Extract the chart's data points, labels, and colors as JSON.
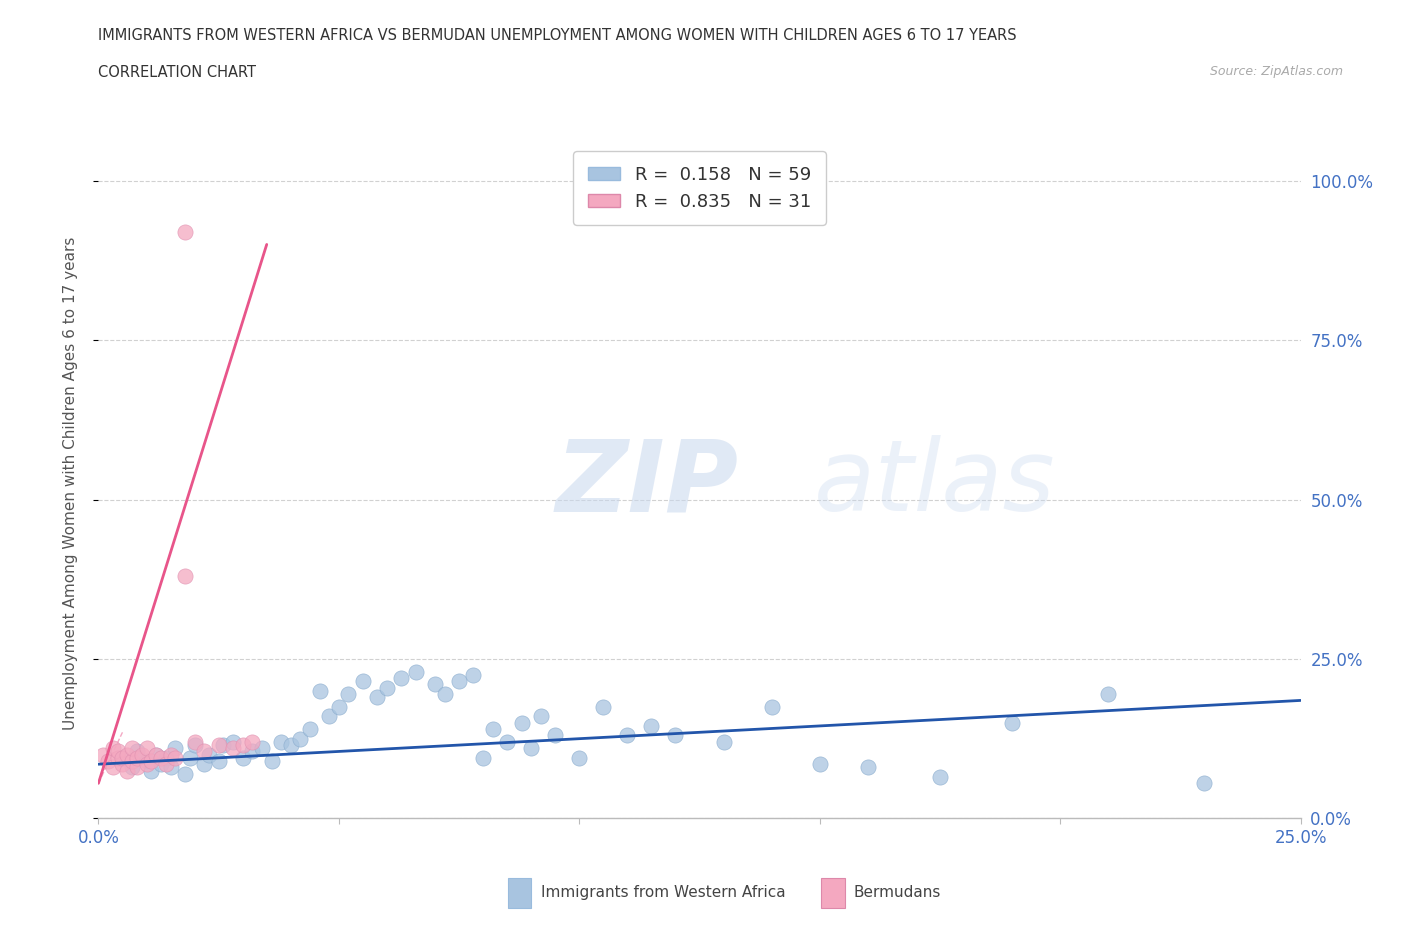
{
  "title_line1": "IMMIGRANTS FROM WESTERN AFRICA VS BERMUDAN UNEMPLOYMENT AMONG WOMEN WITH CHILDREN AGES 6 TO 17 YEARS",
  "title_line2": "CORRELATION CHART",
  "source_text": "Source: ZipAtlas.com",
  "ylabel": "Unemployment Among Women with Children Ages 6 to 17 years",
  "xlim": [
    0.0,
    0.25
  ],
  "ylim": [
    0.0,
    1.05
  ],
  "x_ticks": [
    0.0,
    0.05,
    0.1,
    0.15,
    0.2,
    0.25
  ],
  "x_tick_labels": [
    "0.0%",
    "",
    "",
    "",
    "",
    "25.0%"
  ],
  "y_tick_labels_right": [
    "0.0%",
    "25.0%",
    "50.0%",
    "75.0%",
    "100.0%"
  ],
  "y_tick_positions_right": [
    0.0,
    0.25,
    0.5,
    0.75,
    1.0
  ],
  "blue_color": "#a8c4e0",
  "pink_color": "#f4a8c0",
  "blue_line_color": "#2255aa",
  "pink_line_color": "#e8558a",
  "legend_r_blue": "0.158",
  "legend_n_blue": "59",
  "legend_r_pink": "0.835",
  "legend_n_pink": "31",
  "watermark_zip": "ZIP",
  "watermark_atlas": "atlas",
  "grid_color": "#cccccc",
  "background_color": "#ffffff",
  "blue_scatter_x": [
    0.005,
    0.007,
    0.008,
    0.01,
    0.011,
    0.012,
    0.013,
    0.014,
    0.015,
    0.016,
    0.018,
    0.019,
    0.02,
    0.022,
    0.023,
    0.025,
    0.026,
    0.028,
    0.03,
    0.032,
    0.034,
    0.036,
    0.038,
    0.04,
    0.042,
    0.044,
    0.046,
    0.048,
    0.05,
    0.052,
    0.055,
    0.058,
    0.06,
    0.063,
    0.066,
    0.07,
    0.072,
    0.075,
    0.078,
    0.08,
    0.082,
    0.085,
    0.088,
    0.09,
    0.092,
    0.095,
    0.1,
    0.105,
    0.11,
    0.115,
    0.12,
    0.13,
    0.14,
    0.15,
    0.16,
    0.175,
    0.19,
    0.21,
    0.23
  ],
  "blue_scatter_y": [
    0.095,
    0.08,
    0.105,
    0.09,
    0.075,
    0.1,
    0.085,
    0.095,
    0.08,
    0.11,
    0.07,
    0.095,
    0.115,
    0.085,
    0.1,
    0.09,
    0.115,
    0.12,
    0.095,
    0.105,
    0.11,
    0.09,
    0.12,
    0.115,
    0.125,
    0.14,
    0.2,
    0.16,
    0.175,
    0.195,
    0.215,
    0.19,
    0.205,
    0.22,
    0.23,
    0.21,
    0.195,
    0.215,
    0.225,
    0.095,
    0.14,
    0.12,
    0.15,
    0.11,
    0.16,
    0.13,
    0.095,
    0.175,
    0.13,
    0.145,
    0.13,
    0.12,
    0.175,
    0.085,
    0.08,
    0.065,
    0.15,
    0.195,
    0.055
  ],
  "pink_scatter_x": [
    0.001,
    0.002,
    0.003,
    0.003,
    0.004,
    0.004,
    0.005,
    0.005,
    0.006,
    0.006,
    0.007,
    0.007,
    0.008,
    0.008,
    0.009,
    0.01,
    0.01,
    0.011,
    0.012,
    0.013,
    0.014,
    0.015,
    0.016,
    0.018,
    0.02,
    0.022,
    0.025,
    0.028,
    0.03,
    0.032,
    0.018
  ],
  "pink_scatter_y": [
    0.1,
    0.09,
    0.08,
    0.11,
    0.095,
    0.105,
    0.085,
    0.095,
    0.075,
    0.1,
    0.09,
    0.11,
    0.08,
    0.095,
    0.1,
    0.085,
    0.11,
    0.09,
    0.1,
    0.095,
    0.085,
    0.1,
    0.095,
    0.38,
    0.12,
    0.105,
    0.115,
    0.11,
    0.115,
    0.12,
    0.92
  ],
  "blue_line_x": [
    0.0,
    0.25
  ],
  "blue_line_y": [
    0.085,
    0.185
  ],
  "pink_line_x": [
    0.0,
    0.035
  ],
  "pink_line_y": [
    0.055,
    0.9
  ]
}
